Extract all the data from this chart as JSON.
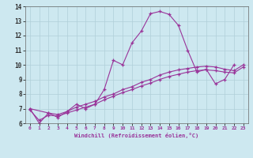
{
  "xlabel": "Windchill (Refroidissement éolien,°C)",
  "bg_color": "#cde8f0",
  "grid_color": "#b0cfd8",
  "line_color": "#993399",
  "xlim": [
    -0.5,
    23.5
  ],
  "ylim": [
    6,
    14
  ],
  "xticks": [
    0,
    1,
    2,
    3,
    4,
    5,
    6,
    7,
    8,
    9,
    10,
    11,
    12,
    13,
    14,
    15,
    16,
    17,
    18,
    19,
    20,
    21,
    22,
    23
  ],
  "yticks": [
    6,
    7,
    8,
    9,
    10,
    11,
    12,
    13,
    14
  ],
  "lines": [
    {
      "x": [
        0,
        1,
        2,
        3,
        4,
        5,
        6,
        7,
        8,
        9,
        10,
        11,
        12,
        13,
        14,
        15,
        16,
        17,
        18,
        19,
        20,
        21,
        22
      ],
      "y": [
        7.0,
        6.0,
        6.7,
        6.4,
        6.8,
        7.3,
        7.0,
        7.3,
        8.3,
        10.3,
        10.0,
        11.5,
        12.3,
        13.5,
        13.65,
        13.45,
        12.7,
        11.0,
        9.5,
        9.7,
        8.7,
        9.0,
        10.0
      ]
    },
    {
      "x": [
        0,
        2,
        3,
        4,
        5,
        6,
        7,
        8,
        9,
        10,
        11,
        12,
        13,
        14,
        15,
        16,
        17,
        18,
        19,
        20,
        21,
        22,
        23
      ],
      "y": [
        7.0,
        6.7,
        6.6,
        6.8,
        7.1,
        7.3,
        7.5,
        7.8,
        8.0,
        8.3,
        8.5,
        8.8,
        9.0,
        9.3,
        9.5,
        9.65,
        9.75,
        9.85,
        9.9,
        9.85,
        9.7,
        9.6,
        10.0
      ]
    },
    {
      "x": [
        0,
        1,
        2,
        3,
        4,
        5,
        6,
        7,
        8,
        9,
        10,
        11,
        12,
        13,
        14,
        15,
        16,
        17,
        18,
        19,
        20,
        21,
        22,
        23
      ],
      "y": [
        6.9,
        6.2,
        6.55,
        6.5,
        6.7,
        6.9,
        7.1,
        7.3,
        7.6,
        7.85,
        8.1,
        8.3,
        8.55,
        8.75,
        9.0,
        9.2,
        9.35,
        9.5,
        9.6,
        9.65,
        9.6,
        9.5,
        9.45,
        9.85
      ]
    }
  ]
}
